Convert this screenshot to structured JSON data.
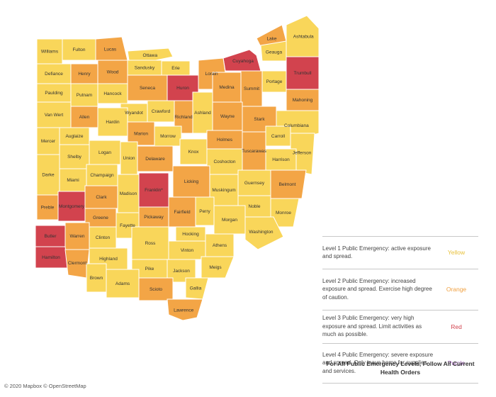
{
  "colors": {
    "yellow": "#F9D65A",
    "orange": "#F3A546",
    "red": "#D2434E",
    "border": "#ffffff"
  },
  "counties": [
    {
      "name": "Williams",
      "level": "yellow"
    },
    {
      "name": "Fulton",
      "level": "yellow"
    },
    {
      "name": "Lucas",
      "level": "orange"
    },
    {
      "name": "Ottawa",
      "level": "yellow"
    },
    {
      "name": "Cuyahoga",
      "level": "red"
    },
    {
      "name": "Lake",
      "level": "orange"
    },
    {
      "name": "Ashtabula",
      "level": "yellow"
    },
    {
      "name": "Defiance",
      "level": "yellow"
    },
    {
      "name": "Henry",
      "level": "orange"
    },
    {
      "name": "Wood",
      "level": "orange"
    },
    {
      "name": "Sandusky",
      "level": "yellow"
    },
    {
      "name": "Erie",
      "level": "yellow"
    },
    {
      "name": "Geauga",
      "level": "yellow"
    },
    {
      "name": "Trumbull",
      "level": "red"
    },
    {
      "name": "Paulding",
      "level": "yellow"
    },
    {
      "name": "Lorain",
      "level": "orange"
    },
    {
      "name": "Huron",
      "level": "red"
    },
    {
      "name": "Seneca",
      "level": "orange"
    },
    {
      "name": "Medina",
      "level": "orange"
    },
    {
      "name": "Summit",
      "level": "orange"
    },
    {
      "name": "Portage",
      "level": "yellow"
    },
    {
      "name": "Putnam",
      "level": "yellow"
    },
    {
      "name": "Hancock",
      "level": "yellow"
    },
    {
      "name": "Mahoning",
      "level": "orange"
    },
    {
      "name": "Van Wert",
      "level": "yellow"
    },
    {
      "name": "Wyandot",
      "level": "yellow"
    },
    {
      "name": "Crawford",
      "level": "yellow"
    },
    {
      "name": "Ashland",
      "level": "yellow"
    },
    {
      "name": "Wayne",
      "level": "orange"
    },
    {
      "name": "Stark",
      "level": "orange"
    },
    {
      "name": "Allen",
      "level": "orange"
    },
    {
      "name": "Richland",
      "level": "orange"
    },
    {
      "name": "Columbiana",
      "level": "yellow"
    },
    {
      "name": "Hardin",
      "level": "yellow"
    },
    {
      "name": "Mercer",
      "level": "yellow"
    },
    {
      "name": "Auglaize",
      "level": "yellow"
    },
    {
      "name": "Marion",
      "level": "orange"
    },
    {
      "name": "Morrow",
      "level": "yellow"
    },
    {
      "name": "Holmes",
      "level": "orange"
    },
    {
      "name": "Carroll",
      "level": "yellow"
    },
    {
      "name": "Tuscarawas",
      "level": "orange"
    },
    {
      "name": "Logan",
      "level": "yellow"
    },
    {
      "name": "Knox",
      "level": "yellow"
    },
    {
      "name": "Jefferson",
      "level": "yellow"
    },
    {
      "name": "Shelby",
      "level": "yellow"
    },
    {
      "name": "Union",
      "level": "yellow"
    },
    {
      "name": "Delaware",
      "level": "orange"
    },
    {
      "name": "Coshocton",
      "level": "yellow"
    },
    {
      "name": "Harrison",
      "level": "yellow"
    },
    {
      "name": "Darke",
      "level": "yellow"
    },
    {
      "name": "Champaign",
      "level": "yellow"
    },
    {
      "name": "Licking",
      "level": "orange"
    },
    {
      "name": "Guernsey",
      "level": "yellow"
    },
    {
      "name": "Franklin*",
      "level": "red"
    },
    {
      "name": "Miami",
      "level": "yellow"
    },
    {
      "name": "Muskingum",
      "level": "yellow"
    },
    {
      "name": "Belmont",
      "level": "orange"
    },
    {
      "name": "Clark",
      "level": "orange"
    },
    {
      "name": "Madison",
      "level": "yellow"
    },
    {
      "name": "Noble",
      "level": "yellow"
    },
    {
      "name": "Preble",
      "level": "orange"
    },
    {
      "name": "Montgomery",
      "level": "red"
    },
    {
      "name": "Fairfield",
      "level": "orange"
    },
    {
      "name": "Perry",
      "level": "yellow"
    },
    {
      "name": "Monroe",
      "level": "yellow"
    },
    {
      "name": "Greene",
      "level": "orange"
    },
    {
      "name": "Pickaway",
      "level": "orange"
    },
    {
      "name": "Morgan",
      "level": "yellow"
    },
    {
      "name": "Fayette",
      "level": "yellow"
    },
    {
      "name": "Butler",
      "level": "red"
    },
    {
      "name": "Warren",
      "level": "orange"
    },
    {
      "name": "Clinton",
      "level": "yellow"
    },
    {
      "name": "Hocking",
      "level": "yellow"
    },
    {
      "name": "Washington",
      "level": "yellow"
    },
    {
      "name": "Ross",
      "level": "yellow"
    },
    {
      "name": "Athens",
      "level": "yellow"
    },
    {
      "name": "Highland",
      "level": "yellow"
    },
    {
      "name": "Vinton",
      "level": "yellow"
    },
    {
      "name": "Hamilton",
      "level": "red"
    },
    {
      "name": "Clermont",
      "level": "orange"
    },
    {
      "name": "Meigs",
      "level": "yellow"
    },
    {
      "name": "Pike",
      "level": "yellow"
    },
    {
      "name": "Jackson",
      "level": "yellow"
    },
    {
      "name": "Brown",
      "level": "yellow"
    },
    {
      "name": "Adams",
      "level": "yellow"
    },
    {
      "name": "Scioto",
      "level": "orange"
    },
    {
      "name": "Gallia",
      "level": "yellow"
    },
    {
      "name": "Lawrence",
      "level": "orange"
    }
  ],
  "legend": [
    {
      "text": "Level 1 Public Emergency: active exposure and spread.",
      "color_label": "Yellow",
      "color": "#E8C13A"
    },
    {
      "text": "Level 2 Public Emergency: increased exposure and spread. Exercise high degree of caution.",
      "color_label": "Orange",
      "color": "#F0A040"
    },
    {
      "text": "Level 3 Public Emergency: very high exposure and spread. Limit activities as much as possible.",
      "color_label": "Red",
      "color": "#D2434E"
    },
    {
      "text": "Level 4 Public Emergency: severe exposure and spread. Only leave home for supplies and services.",
      "color_label": "Purple",
      "color": "#9B59B6"
    }
  ],
  "footer_text": "For All Public Emergency Levels, Follow All Current Health Orders",
  "attribution": "© 2020 Mapbox © OpenStreetMap"
}
